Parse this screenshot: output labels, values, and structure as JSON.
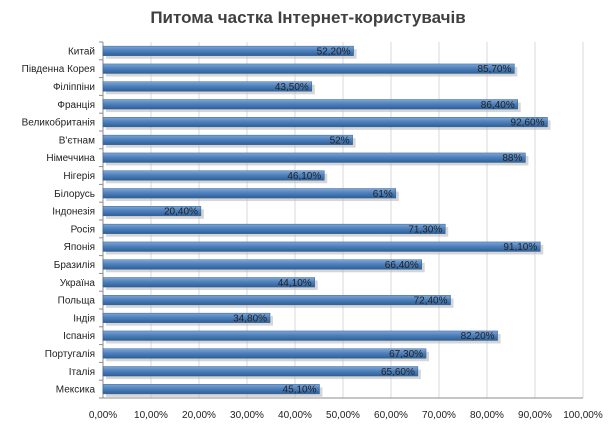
{
  "chart_data": {
    "type": "bar",
    "orientation": "horizontal",
    "title": "Питома частка Інтернет-користувачів",
    "xlabel": "",
    "ylabel": "",
    "categories": [
      "Китай",
      "Південна Корея",
      "Філіппіни",
      "Франція",
      "Великобританія",
      "В'єтнам",
      "Німеччина",
      "Нігерія",
      "Білорусь",
      "Індонезія",
      "Росія",
      "Японія",
      "Бразилія",
      "Україна",
      "Польща",
      "Індія",
      "Іспанія",
      "Португалія",
      "Італія",
      "Мексика"
    ],
    "values": [
      52.2,
      85.7,
      43.5,
      86.4,
      92.6,
      52,
      88,
      46.1,
      61,
      20.4,
      71.3,
      91.1,
      66.4,
      44.1,
      72.4,
      34.8,
      82.2,
      67.3,
      65.6,
      45.1
    ],
    "value_labels": [
      "52,20%",
      "85,70%",
      "43,50%",
      "86,40%",
      "92,60%",
      "52%",
      "88%",
      "46,10%",
      "61%",
      "20,40%",
      "71,30%",
      "91,10%",
      "66,40%",
      "44,10%",
      "72,40%",
      "34,80%",
      "82,20%",
      "67,30%",
      "65,60%",
      "45,10%"
    ],
    "xlim": [
      0,
      100
    ],
    "xticks": [
      0,
      10,
      20,
      30,
      40,
      50,
      60,
      70,
      80,
      90,
      100
    ],
    "xtick_labels": [
      "0,00%",
      "10,00%",
      "20,00%",
      "30,00%",
      "40,00%",
      "50,00%",
      "60,00%",
      "70,00%",
      "80,00%",
      "90,00%",
      "100,00%"
    ],
    "grid": true,
    "legend": "none",
    "colors": {
      "bar": "#4f81bd",
      "bar_dark": "#2f5f96",
      "bar_light": "#7ea6d6",
      "shadow": "#b4b4b4",
      "grid": "#d9d9d9",
      "axis": "#8c8c8c"
    }
  }
}
